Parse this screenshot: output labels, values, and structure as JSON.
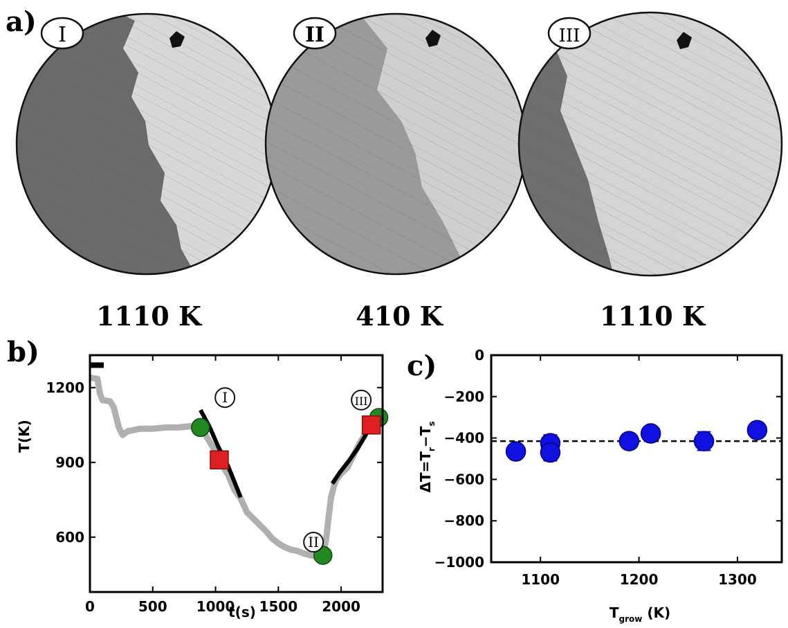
{
  "panel_a": {
    "label": "a)",
    "images": [
      {
        "marker": "I",
        "temperature": "1110 K"
      },
      {
        "marker": "II",
        "temperature": "410 K"
      },
      {
        "marker": "III",
        "temperature": "1110 K"
      }
    ]
  },
  "panel_b": {
    "label": "b)"
  },
  "panel_c": {
    "label": "c)"
  },
  "chart_data": [
    {
      "id": "b",
      "type": "line",
      "title": "",
      "xlabel": "t(s)",
      "ylabel": "T(K)",
      "xlim": [
        0,
        2330
      ],
      "ylim": [
        380,
        1330
      ],
      "xticks": [
        "0",
        "500",
        "1000",
        "1500",
        "2000"
      ],
      "yticks": [
        "600",
        "900",
        "1200"
      ],
      "grid": false,
      "series": [
        {
          "role": "temperature-trace",
          "color": "#b0b0b0",
          "x": [
            0,
            60,
            80,
            100,
            160,
            190,
            230,
            260,
            300,
            400,
            500,
            600,
            700,
            800,
            880,
            920,
            980,
            1040,
            1100,
            1150,
            1200,
            1250,
            1300,
            1350,
            1400,
            1450,
            1500,
            1550,
            1600,
            1650,
            1700,
            1750,
            1800,
            1840,
            1860,
            1880,
            1900,
            1920,
            1940,
            1960,
            2000,
            2050,
            2100,
            2150,
            2200,
            2250,
            2300
          ],
          "y": [
            1240,
            1235,
            1175,
            1150,
            1145,
            1120,
            1040,
            1010,
            1025,
            1035,
            1035,
            1040,
            1040,
            1045,
            1040,
            1010,
            960,
            900,
            850,
            790,
            755,
            700,
            675,
            650,
            625,
            595,
            575,
            560,
            550,
            545,
            535,
            528,
            522,
            525,
            540,
            590,
            680,
            760,
            800,
            830,
            855,
            880,
            930,
            980,
            1020,
            1060,
            1080
          ]
        },
        {
          "role": "fit-1",
          "color": "#000000",
          "x": [
            880,
            950,
            1020,
            1100,
            1160,
            1200
          ],
          "y": [
            1110,
            1045,
            965,
            885,
            810,
            760
          ]
        },
        {
          "role": "fit-2",
          "color": "#000000",
          "x": [
            1930,
            1990,
            2060,
            2130,
            2190,
            2230
          ],
          "y": [
            815,
            860,
            905,
            955,
            1005,
            1045
          ]
        },
        {
          "role": "initial-marker",
          "color": "#000000",
          "x": [
            0,
            110
          ],
          "y": [
            1290,
            1290
          ]
        }
      ],
      "points": [
        {
          "role": "green",
          "color": "#228822",
          "x": 880,
          "y": 1040
        },
        {
          "role": "green",
          "color": "#228822",
          "x": 1855,
          "y": 527
        },
        {
          "role": "green",
          "color": "#228822",
          "x": 2300,
          "y": 1080
        },
        {
          "role": "red",
          "color": "#e02020",
          "x": 1030,
          "y": 910
        },
        {
          "role": "red",
          "color": "#e02020",
          "x": 2240,
          "y": 1050
        }
      ],
      "annotations": [
        {
          "text": "I",
          "x": 1075,
          "y": 1160
        },
        {
          "text": "II",
          "x": 1780,
          "y": 580
        },
        {
          "text": "III",
          "x": 2160,
          "y": 1150
        }
      ]
    },
    {
      "id": "c",
      "type": "scatter",
      "title": "",
      "xlabel": "T_grow (K)",
      "xlabel_main": "T",
      "xlabel_sub": "grow",
      "xlabel_tail": " (K)",
      "ylabel": "ΔT=T_r−T_s",
      "ylabel_main": "ΔT=T",
      "ylabel_sub1": "r",
      "ylabel_mid": "−T",
      "ylabel_sub2": "s",
      "xlim": [
        1050,
        1345
      ],
      "ylim": [
        -1000,
        0
      ],
      "xticks": [
        "1100",
        "1200",
        "1300"
      ],
      "yticks": [
        "0",
        "−200",
        "−400",
        "−600",
        "−800",
        "−1000"
      ],
      "grid": false,
      "reference_line_y": -415,
      "points": [
        {
          "x": 1075,
          "y": -465,
          "err": 20
        },
        {
          "x": 1110,
          "y": -425,
          "err": 40
        },
        {
          "x": 1110,
          "y": -470,
          "err": 40
        },
        {
          "x": 1190,
          "y": -415,
          "err": 35
        },
        {
          "x": 1212,
          "y": -378,
          "err": 20
        },
        {
          "x": 1266,
          "y": -415,
          "err": 45
        },
        {
          "x": 1320,
          "y": -362,
          "err": 25
        }
      ],
      "point_color": "#1010e0"
    }
  ]
}
